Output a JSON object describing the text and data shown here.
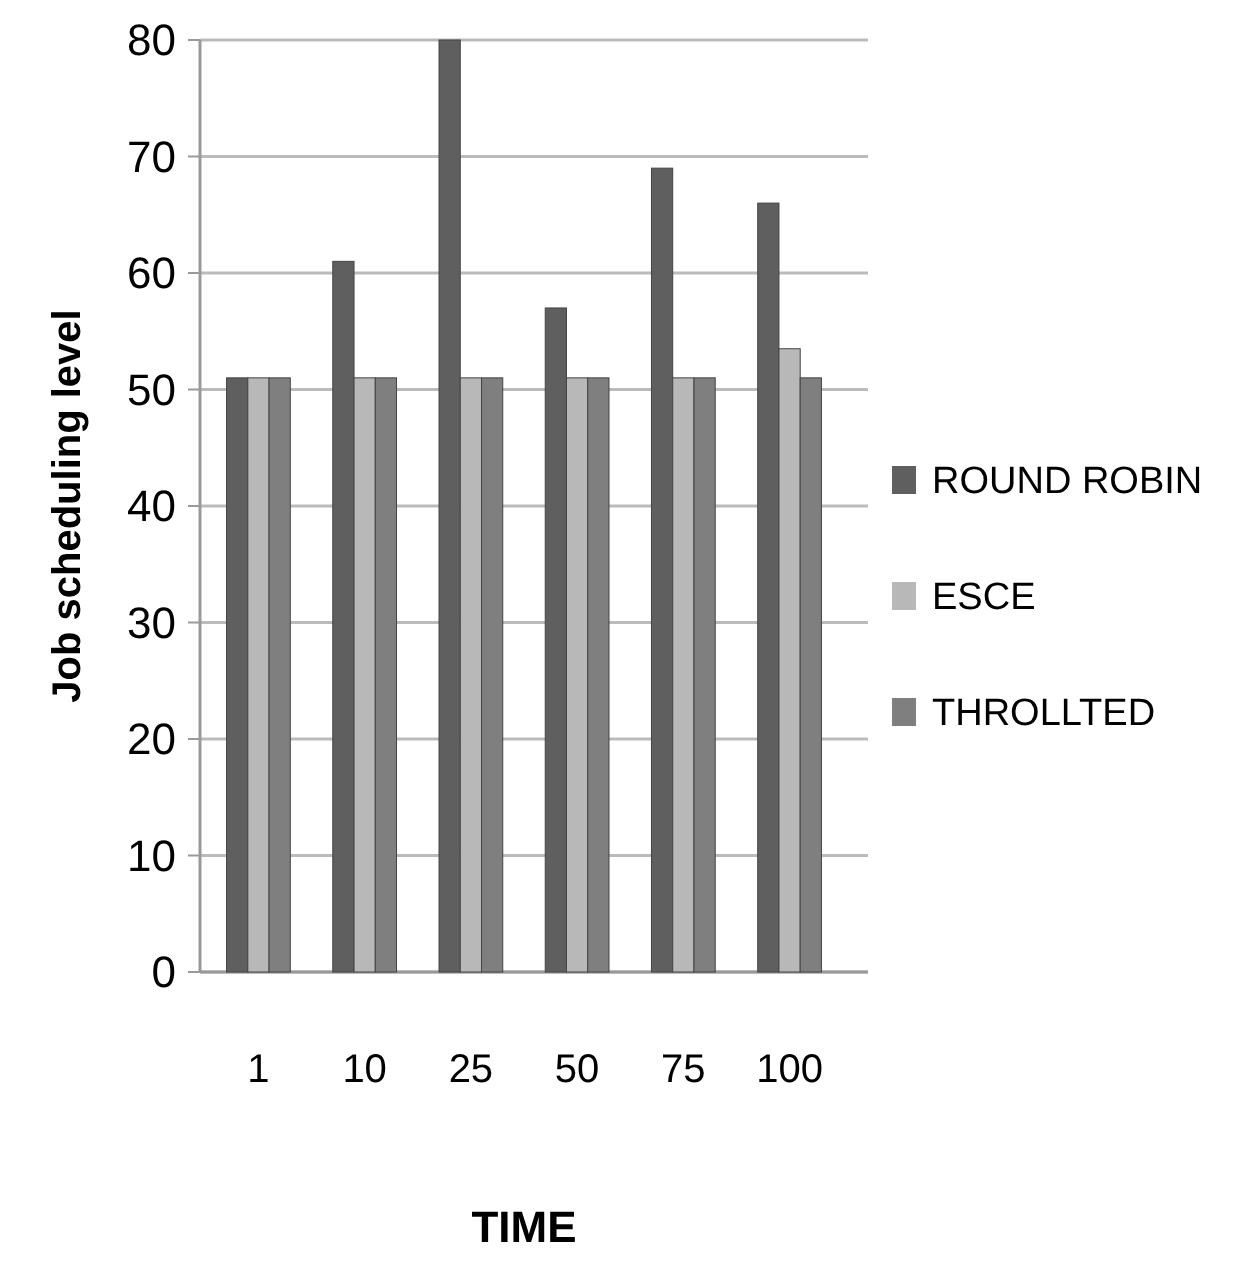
{
  "chart_data": {
    "type": "bar",
    "xlabel": "TIME",
    "ylabel": "Job scheduling level",
    "categories": [
      "1",
      "10",
      "25",
      "50",
      "75",
      "100"
    ],
    "series": [
      {
        "name": "ROUND ROBIN",
        "color": "#5f5f5f",
        "values": [
          51,
          61,
          80,
          57,
          69,
          66
        ]
      },
      {
        "name": "ESCE",
        "color": "#b8b8b8",
        "values": [
          51,
          51,
          51,
          51,
          51,
          53.5
        ]
      },
      {
        "name": "THROLLTED",
        "color": "#7f7f7f",
        "values": [
          51,
          51,
          51,
          51,
          51,
          51
        ]
      }
    ],
    "ylim": [
      0,
      80
    ],
    "yticks": [
      0,
      10,
      20,
      30,
      40,
      50,
      60,
      70,
      80
    ],
    "grid": "y",
    "legend": "right"
  }
}
